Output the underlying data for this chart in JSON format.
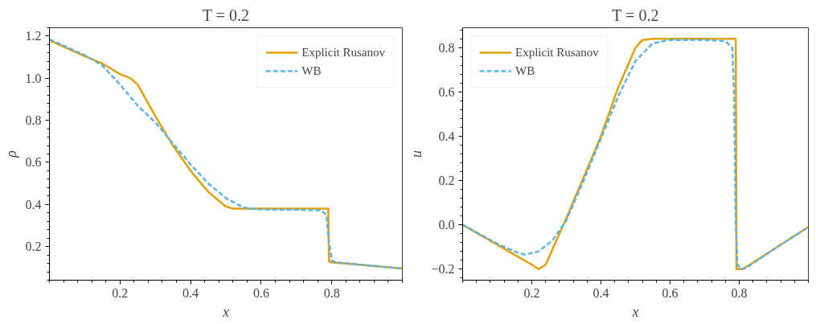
{
  "chart_data": [
    {
      "type": "line",
      "title": "T = 0.2",
      "xlabel": "x",
      "ylabel": "ρ",
      "xlim": [
        0,
        1
      ],
      "ylim": [
        0.04,
        1.24
      ],
      "xticks": [
        0.2,
        0.4,
        0.6,
        0.8
      ],
      "yticks": [
        0.2,
        0.4,
        0.6,
        0.8,
        {
          "value": 1,
          "label": "1.0"
        },
        1.2
      ],
      "grid": false,
      "legend": "top right",
      "series": [
        {
          "name": "Explicit Rusanov",
          "color": "#e69f00",
          "line_style": "solid",
          "x": [
            0,
            0.1,
            0.15,
            0.2,
            0.23,
            0.25,
            0.3,
            0.35,
            0.4,
            0.45,
            0.5,
            0.52,
            0.79,
            0.792,
            0.8,
            1.0
          ],
          "values": [
            1.18,
            1.105,
            1.07,
            1.02,
            1.0,
            0.97,
            0.82,
            0.68,
            0.56,
            0.46,
            0.39,
            0.38,
            0.38,
            0.13,
            0.125,
            0.095
          ]
        },
        {
          "name": "WB",
          "color": "#56b4e9",
          "line_style": "dashed",
          "x": [
            0,
            0.1,
            0.15,
            0.2,
            0.25,
            0.3,
            0.35,
            0.4,
            0.45,
            0.5,
            0.55,
            0.6,
            0.7,
            0.77,
            0.785,
            0.79,
            0.8,
            0.81,
            1.0
          ],
          "values": [
            1.185,
            1.11,
            1.06,
            0.97,
            0.87,
            0.79,
            0.69,
            0.59,
            0.5,
            0.43,
            0.385,
            0.376,
            0.375,
            0.372,
            0.35,
            0.25,
            0.135,
            0.125,
            0.095
          ]
        }
      ]
    },
    {
      "type": "line",
      "title": "T = 0.2",
      "xlabel": "x",
      "ylabel": "u",
      "xlim": [
        0,
        1
      ],
      "ylim": [
        -0.25,
        0.89
      ],
      "xticks": [
        0.2,
        0.4,
        0.6,
        0.8
      ],
      "yticks": [
        {
          "value": -0.2,
          "label": "−0.2"
        },
        {
          "value": 0,
          "label": "0.0"
        },
        0.2,
        0.4,
        0.6,
        0.8
      ],
      "grid": false,
      "legend": "top left",
      "series": [
        {
          "name": "Explicit Rusanov",
          "color": "#e69f00",
          "line_style": "solid",
          "x": [
            0,
            0.1,
            0.2,
            0.22,
            0.24,
            0.3,
            0.4,
            0.45,
            0.5,
            0.52,
            0.55,
            0.79,
            0.792,
            0.81,
            0.9,
            1.0
          ],
          "values": [
            0.0,
            -0.09,
            -0.18,
            -0.2,
            -0.18,
            0.03,
            0.4,
            0.62,
            0.8,
            0.835,
            0.84,
            0.84,
            -0.2,
            -0.2,
            -0.11,
            -0.01
          ]
        },
        {
          "name": "WB",
          "color": "#56b4e9",
          "line_style": "dashed",
          "x": [
            0,
            0.1,
            0.15,
            0.18,
            0.22,
            0.26,
            0.3,
            0.35,
            0.4,
            0.45,
            0.5,
            0.55,
            0.6,
            0.7,
            0.76,
            0.78,
            0.785,
            0.79,
            0.795,
            0.805,
            0.82,
            0.9,
            1.0
          ],
          "values": [
            0.0,
            -0.085,
            -0.12,
            -0.135,
            -0.12,
            -0.07,
            0.02,
            0.2,
            0.39,
            0.58,
            0.74,
            0.82,
            0.835,
            0.835,
            0.83,
            0.8,
            0.6,
            0.0,
            -0.18,
            -0.2,
            -0.195,
            -0.11,
            -0.01
          ]
        }
      ]
    }
  ]
}
